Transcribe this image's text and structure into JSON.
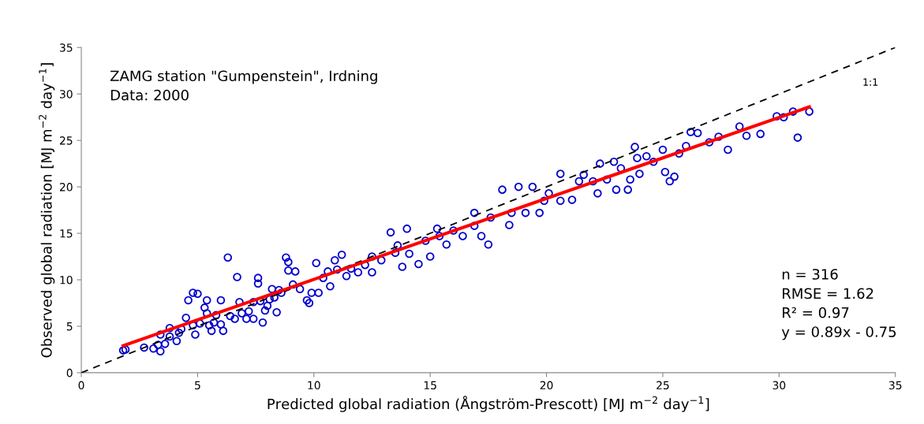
{
  "chart_data": {
    "type": "scatter",
    "xlabel": "Predicted global radiation (Ångström-Prescott) [MJ m$^{−2}$ day$^{−1}$]",
    "ylabel": "Observed global radiation [MJ m$^{−2}$ day$^{−1}$]",
    "xlim": [
      0,
      35
    ],
    "ylim": [
      0,
      35
    ],
    "xticks": [
      0,
      5,
      10,
      15,
      20,
      25,
      30,
      35
    ],
    "yticks": [
      0,
      5,
      10,
      15,
      20,
      25,
      30,
      35
    ],
    "grid": false,
    "legend": false,
    "annotations": [
      "ZAMG station \"Gumpenstein\", Irdning\nData: 2000",
      "n = 316\nRMSE = 1.62\nR² = 0.97\ny = 0.89x - 0.75"
    ],
    "series": [
      {
        "color": "#0000cc",
        "marker": "circle",
        "x": [
          1.8,
          1.9,
          2.7,
          3.1,
          3.3,
          3.4,
          3.4,
          3.6,
          3.8,
          3.8,
          4.1,
          4.2,
          4.3,
          4.6,
          4.5,
          4.8,
          5.0,
          4.8,
          4.9,
          5.1,
          5.3,
          5.4,
          5.4,
          5.5,
          5.7,
          5.6,
          5.8,
          6.0,
          6.0,
          6.1,
          6.3,
          6.4,
          6.6,
          6.7,
          6.8,
          6.9,
          7.1,
          7.2,
          7.4,
          7.4,
          7.6,
          7.6,
          7.7,
          7.8,
          7.9,
          8.0,
          8.1,
          8.3,
          8.4,
          8.2,
          8.5,
          8.6,
          8.8,
          8.9,
          8.9,
          9.1,
          9.2,
          9.4,
          9.7,
          9.8,
          9.9,
          10.1,
          10.2,
          10.4,
          10.6,
          10.7,
          10.9,
          11.0,
          11.2,
          11.4,
          11.6,
          11.9,
          12.2,
          12.5,
          12.5,
          12.9,
          13.3,
          13.5,
          13.6,
          13.8,
          14.0,
          14.1,
          14.5,
          14.8,
          15.0,
          15.3,
          15.4,
          15.7,
          16.0,
          16.4,
          16.9,
          16.9,
          17.2,
          17.5,
          17.6,
          18.1,
          18.4,
          18.5,
          18.8,
          19.1,
          19.4,
          19.7,
          19.9,
          20.1,
          20.6,
          20.6,
          21.1,
          21.4,
          21.6,
          22.0,
          22.2,
          22.3,
          22.6,
          22.9,
          23.0,
          23.2,
          23.5,
          23.6,
          23.8,
          23.9,
          24.0,
          24.3,
          24.6,
          25.0,
          25.1,
          25.3,
          25.5,
          25.7,
          26.0,
          26.2,
          26.5,
          27.0,
          27.4,
          27.8,
          28.3,
          28.6,
          29.2,
          29.9,
          30.2,
          30.6,
          30.8,
          31.3
        ],
        "values": [
          2.4,
          2.5,
          2.7,
          2.6,
          3.0,
          2.3,
          4.1,
          3.1,
          3.9,
          4.8,
          3.4,
          4.3,
          4.7,
          7.8,
          5.9,
          8.6,
          8.5,
          5.1,
          4.1,
          5.3,
          7.0,
          7.8,
          6.4,
          5.1,
          5.4,
          4.5,
          6.2,
          7.8,
          5.2,
          4.5,
          12.4,
          6.1,
          5.8,
          10.3,
          7.6,
          6.4,
          5.8,
          6.6,
          7.6,
          5.8,
          9.6,
          10.2,
          7.7,
          5.4,
          6.7,
          7.2,
          7.9,
          8.1,
          6.5,
          9.0,
          8.9,
          8.6,
          12.4,
          11.0,
          11.9,
          9.5,
          10.9,
          9.0,
          7.8,
          7.5,
          8.6,
          11.8,
          8.6,
          10.2,
          10.9,
          9.3,
          12.1,
          11.1,
          12.7,
          10.4,
          11.2,
          10.8,
          11.6,
          12.5,
          10.8,
          12.1,
          15.1,
          12.9,
          13.7,
          11.4,
          15.5,
          12.8,
          11.7,
          14.2,
          12.5,
          15.5,
          14.7,
          13.8,
          15.3,
          14.7,
          15.8,
          17.2,
          14.7,
          13.8,
          16.7,
          19.7,
          15.9,
          17.2,
          20.0,
          17.2,
          20.0,
          17.2,
          18.5,
          19.3,
          21.4,
          18.5,
          18.6,
          20.6,
          21.3,
          20.6,
          19.3,
          22.5,
          20.8,
          22.7,
          19.7,
          22.0,
          19.7,
          20.8,
          24.3,
          23.1,
          21.4,
          23.3,
          22.7,
          24.0,
          21.6,
          20.6,
          21.1,
          23.6,
          24.4,
          25.9,
          25.8,
          24.8,
          25.4,
          24.0,
          26.5,
          25.5,
          25.7,
          27.6,
          27.5,
          28.1,
          25.3,
          28.1
        ]
      },
      {
        "type": "line",
        "name": "1:1",
        "color": "#000000",
        "line_style": "dashed",
        "marker": "none",
        "x": [
          0,
          35
        ],
        "values": [
          0,
          35
        ]
      },
      {
        "type": "line",
        "color": "#ff0000",
        "line_style": "solid",
        "marker": "none",
        "x": [
          1.8,
          31.3
        ],
        "values": [
          2.9,
          28.6
        ]
      }
    ]
  }
}
